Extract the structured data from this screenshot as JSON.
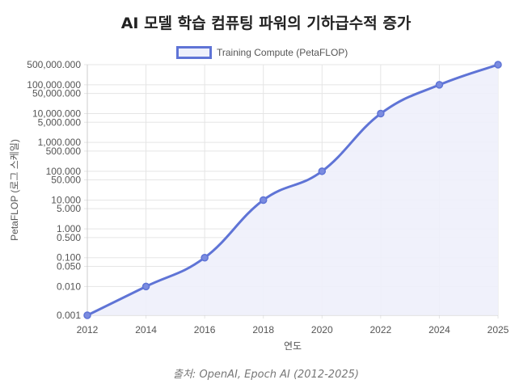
{
  "chart_data": {
    "type": "line",
    "title": "AI 모델 학습 컴퓨팅 파워의 기하급수적 증가",
    "xlabel": "연도",
    "ylabel": "PetaFLOP (로그 스케일)",
    "y_scale": "log",
    "ylim": [
      0.001,
      500000
    ],
    "grid": true,
    "legend_position": "top",
    "categories": [
      "2012",
      "2014",
      "2016",
      "2018",
      "2020",
      "2022",
      "2024",
      "2025"
    ],
    "series": [
      {
        "name": "Training Compute (PetaFLOP)",
        "values": [
          0.001,
          0.01,
          0.1,
          10,
          100,
          10000,
          100000,
          500000
        ],
        "color": "#5f74d6",
        "fill": "#eef0fb"
      }
    ],
    "y_ticks": [
      {
        "value": 500000,
        "label": "500,000.000"
      },
      {
        "value": 100000,
        "label": "100,000.000"
      },
      {
        "value": 50000,
        "label": "50,000.000"
      },
      {
        "value": 10000,
        "label": "10,000.000"
      },
      {
        "value": 5000,
        "label": "5,000.000"
      },
      {
        "value": 1000,
        "label": "1,000.000"
      },
      {
        "value": 500,
        "label": "500.000"
      },
      {
        "value": 100,
        "label": "100.000"
      },
      {
        "value": 50,
        "label": "50.000"
      },
      {
        "value": 10,
        "label": "10.000"
      },
      {
        "value": 5,
        "label": "5.000"
      },
      {
        "value": 1,
        "label": "1.000"
      },
      {
        "value": 0.5,
        "label": "0.500"
      },
      {
        "value": 0.1,
        "label": "0.100"
      },
      {
        "value": 0.05,
        "label": "0.050"
      },
      {
        "value": 0.01,
        "label": "0.010"
      },
      {
        "value": 0.001,
        "label": "0.001"
      }
    ]
  },
  "source": "출처: OpenAI, Epoch AI (2012-2025)"
}
